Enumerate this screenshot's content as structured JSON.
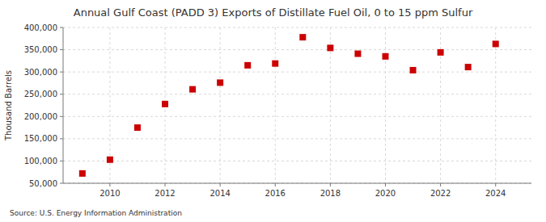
{
  "chart_data": {
    "type": "scatter",
    "title": "Annual Gulf Coast (PADD 3) Exports of Distillate Fuel Oil, 0 to 15 ppm Sulfur",
    "ylabel": "Thousand Barrels",
    "source": "Source: U.S. Energy Information Administration",
    "x": [
      2009,
      2010,
      2011,
      2012,
      2013,
      2014,
      2015,
      2016,
      2017,
      2018,
      2019,
      2020,
      2021,
      2022,
      2023,
      2024
    ],
    "values": [
      72000,
      103000,
      175000,
      228000,
      261000,
      276000,
      315000,
      319000,
      378000,
      354000,
      341000,
      335000,
      304000,
      344000,
      311000,
      363000
    ],
    "color": "#cc0000",
    "marker": "square",
    "xlim": [
      2008.3,
      2025.3
    ],
    "xticks": [
      2010,
      2012,
      2014,
      2016,
      2018,
      2020,
      2022,
      2024
    ],
    "ylim": [
      50000,
      400000
    ],
    "yticks": [
      {
        "value": 50000,
        "label": "50,000"
      },
      {
        "value": 100000,
        "label": "100,000"
      },
      {
        "value": 150000,
        "label": "150,000"
      },
      {
        "value": 200000,
        "label": "200,000"
      },
      {
        "value": 250000,
        "label": "250,000"
      },
      {
        "value": 300000,
        "label": "300,000"
      },
      {
        "value": 350000,
        "label": "350,000"
      },
      {
        "value": 400000,
        "label": "400,000"
      }
    ],
    "grid": true
  }
}
